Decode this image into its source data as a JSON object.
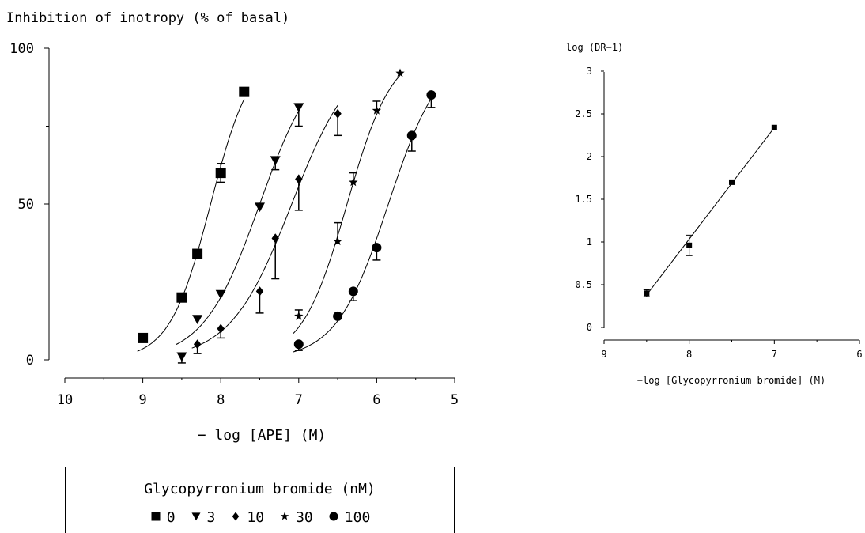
{
  "chart_data": [
    {
      "type": "scatter",
      "ylabel": "Inhibition of inotropy (% of basal)",
      "xlabel": "− log [APE] (M)",
      "xlim": [
        10,
        5
      ],
      "ylim": [
        0,
        100
      ],
      "x_ticks": [
        "10",
        "9",
        "8",
        "7",
        "6",
        "5"
      ],
      "y_ticks": [
        "0",
        "50",
        "100"
      ],
      "curve_fit": "sigmoidal",
      "legend": {
        "title": "Glycopyrronium bromide (nM)",
        "placement": "bottom",
        "entries": [
          {
            "label": "0",
            "marker": "square"
          },
          {
            "label": "3",
            "marker": "triangle-down"
          },
          {
            "label": "10",
            "marker": "diamond"
          },
          {
            "label": "30",
            "marker": "star"
          },
          {
            "label": "100",
            "marker": "circle"
          }
        ]
      },
      "series": [
        {
          "name": "0",
          "marker": "square",
          "x": [
            9.0,
            8.5,
            8.3,
            8.0,
            7.7
          ],
          "y": [
            7,
            20,
            34,
            60,
            86
          ],
          "err_plus": [
            0,
            0,
            1,
            3,
            1
          ],
          "err_minus": [
            0,
            0,
            1,
            3,
            1
          ]
        },
        {
          "name": "3",
          "marker": "triangle-down",
          "x": [
            8.5,
            8.3,
            8.0,
            7.5,
            7.3,
            7.0
          ],
          "y": [
            1,
            13,
            21,
            49,
            64,
            81
          ],
          "err_plus": [
            0,
            0,
            0,
            0,
            0,
            0
          ],
          "err_minus": [
            2,
            0,
            0,
            0,
            3,
            6
          ]
        },
        {
          "name": "10",
          "marker": "diamond",
          "x": [
            8.3,
            8.0,
            7.5,
            7.3,
            7.0,
            6.5
          ],
          "y": [
            5,
            10,
            22,
            39,
            58,
            79
          ],
          "err_plus": [
            0,
            0,
            0,
            0,
            0,
            0
          ],
          "err_minus": [
            3,
            3,
            7,
            13,
            10,
            7
          ]
        },
        {
          "name": "30",
          "marker": "star",
          "x": [
            7.0,
            6.5,
            6.3,
            6.0,
            5.7
          ],
          "y": [
            14,
            38,
            57,
            80,
            92
          ],
          "err_plus": [
            2,
            6,
            3,
            3,
            0
          ],
          "err_minus": [
            0,
            0,
            0,
            0,
            0
          ]
        },
        {
          "name": "100",
          "marker": "circle",
          "x": [
            7.0,
            6.5,
            6.3,
            6.0,
            5.55,
            5.3
          ],
          "y": [
            5,
            14,
            22,
            36,
            72,
            85
          ],
          "err_plus": [
            0,
            0,
            0,
            0,
            0,
            0
          ],
          "err_minus": [
            2,
            0,
            3,
            4,
            5,
            4
          ]
        }
      ]
    },
    {
      "type": "scatter",
      "ylabel": "log (DR−1)",
      "xlabel": "−log [Glycopyrronium bromide] (M)",
      "xlim": [
        9,
        6
      ],
      "ylim": [
        0,
        3
      ],
      "x_ticks": [
        "9",
        "8",
        "7",
        "6"
      ],
      "y_ticks": [
        "0",
        "0.5",
        "1",
        "1.5",
        "2",
        "2.5",
        "3"
      ],
      "fit": "linear",
      "series": [
        {
          "marker": "square",
          "x": [
            8.5,
            8.0,
            7.5,
            7.0
          ],
          "y": [
            0.4,
            0.96,
            1.7,
            2.34
          ],
          "err": [
            0.04,
            0.12,
            0,
            0
          ]
        }
      ],
      "fit_line": {
        "x": [
          8.5,
          7.0
        ],
        "y": [
          0.38,
          2.34
        ]
      }
    }
  ]
}
